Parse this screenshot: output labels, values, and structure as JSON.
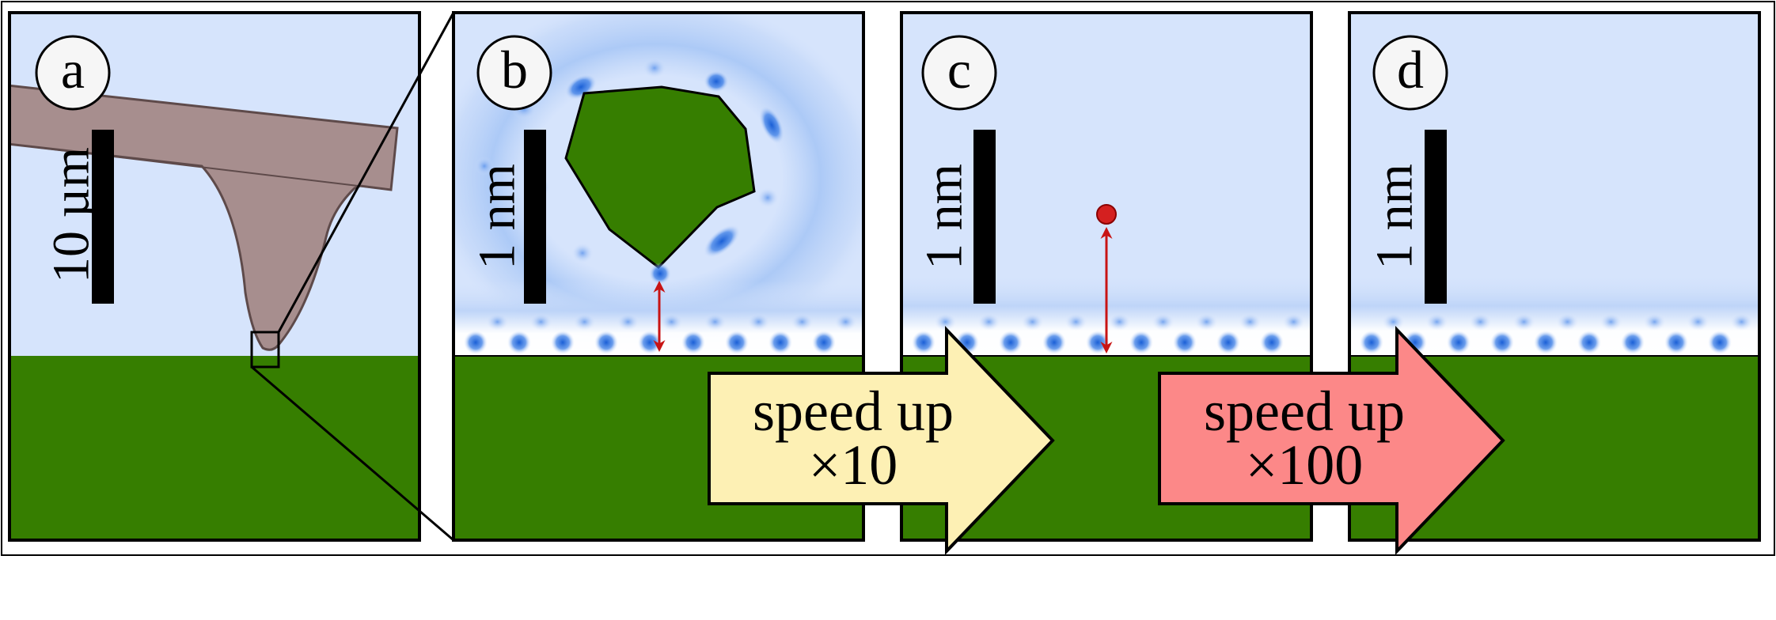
{
  "panels": [
    {
      "letter": "a",
      "scale_label": "10 µm"
    },
    {
      "letter": "b",
      "scale_label": "1 nm"
    },
    {
      "letter": "c",
      "scale_label": "1 nm"
    },
    {
      "letter": "d",
      "scale_label": "1 nm"
    }
  ],
  "arrows": [
    {
      "line1": "speed up",
      "line2": "×10",
      "color": "#fdf0b4"
    },
    {
      "line1": "speed up",
      "line2": "×100",
      "color": "#fc8888"
    }
  ],
  "colors": {
    "sky": "#d6e4fc",
    "ground": "#367e00",
    "cantilever": "#a78e8e",
    "atom": "#1a5fd6",
    "force_arrow": "#c81414"
  }
}
